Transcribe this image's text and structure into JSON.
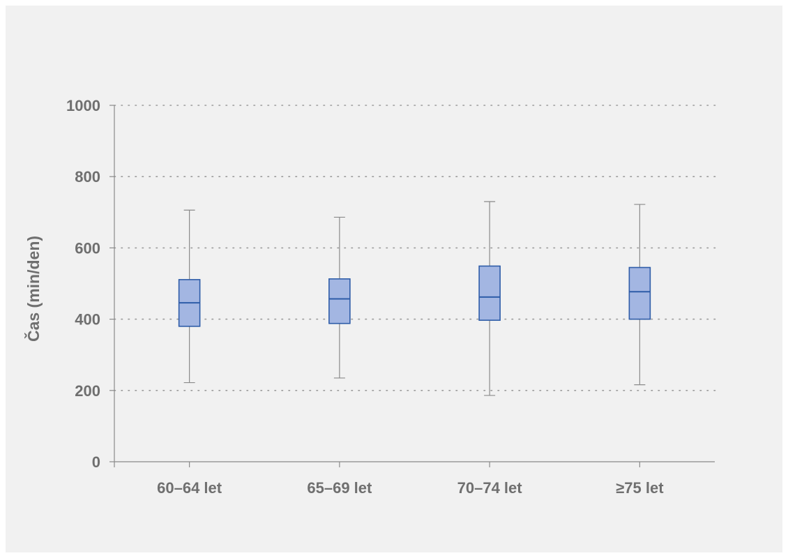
{
  "chart_data": {
    "type": "boxplot",
    "ylabel": "Čas (min/den)",
    "xlabel": "",
    "ylim": [
      0,
      1000
    ],
    "yticks": [
      0,
      200,
      400,
      600,
      800,
      1000
    ],
    "grid": "horizontal dotted",
    "categories": [
      "60–64 let",
      "65–69 let",
      "70–74 let",
      "≥75 let"
    ],
    "boxes": [
      {
        "category": "60–64 let",
        "min": 222,
        "q1": 380,
        "median": 446,
        "q3": 511,
        "max": 706
      },
      {
        "category": "65–69 let",
        "min": 235,
        "q1": 388,
        "median": 457,
        "q3": 513,
        "max": 686
      },
      {
        "category": "70–74 let",
        "min": 186,
        "q1": 397,
        "median": 462,
        "q3": 549,
        "max": 730
      },
      {
        "category": "≥75 let",
        "min": 216,
        "q1": 400,
        "median": 477,
        "q3": 545,
        "max": 722
      }
    ]
  },
  "colors": {
    "box_fill": "#a3b6e2",
    "box_stroke": "#2e5ca8",
    "whisker": "#8a8a8a",
    "axis": "#8a8a8a",
    "grid": "#9a9a9a",
    "text": "#6f6f6f",
    "background": "#f1f1f1"
  }
}
